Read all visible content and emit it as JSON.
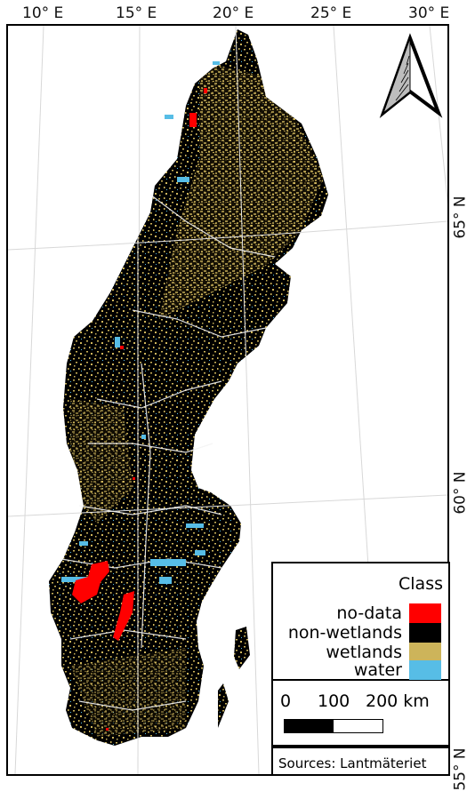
{
  "longitude_labels": [
    "10° E",
    "15° E",
    "20° E",
    "25° E",
    "30° E"
  ],
  "latitude_labels": [
    "65° N",
    "60° N",
    "55° N"
  ],
  "legend": {
    "title": "Class",
    "items": [
      {
        "label": "no-data",
        "color": "#ff0000"
      },
      {
        "label": "non-wetlands",
        "color": "#000000"
      },
      {
        "label": "wetlands",
        "color": "#cdb45a"
      },
      {
        "label": "water",
        "color": "#57bde6"
      }
    ]
  },
  "scale_bar": {
    "labels": [
      "0",
      "100",
      "200 km"
    ]
  },
  "sources": "Sources: Lantmäteriet",
  "north_arrow_icon": "north-arrow-icon"
}
